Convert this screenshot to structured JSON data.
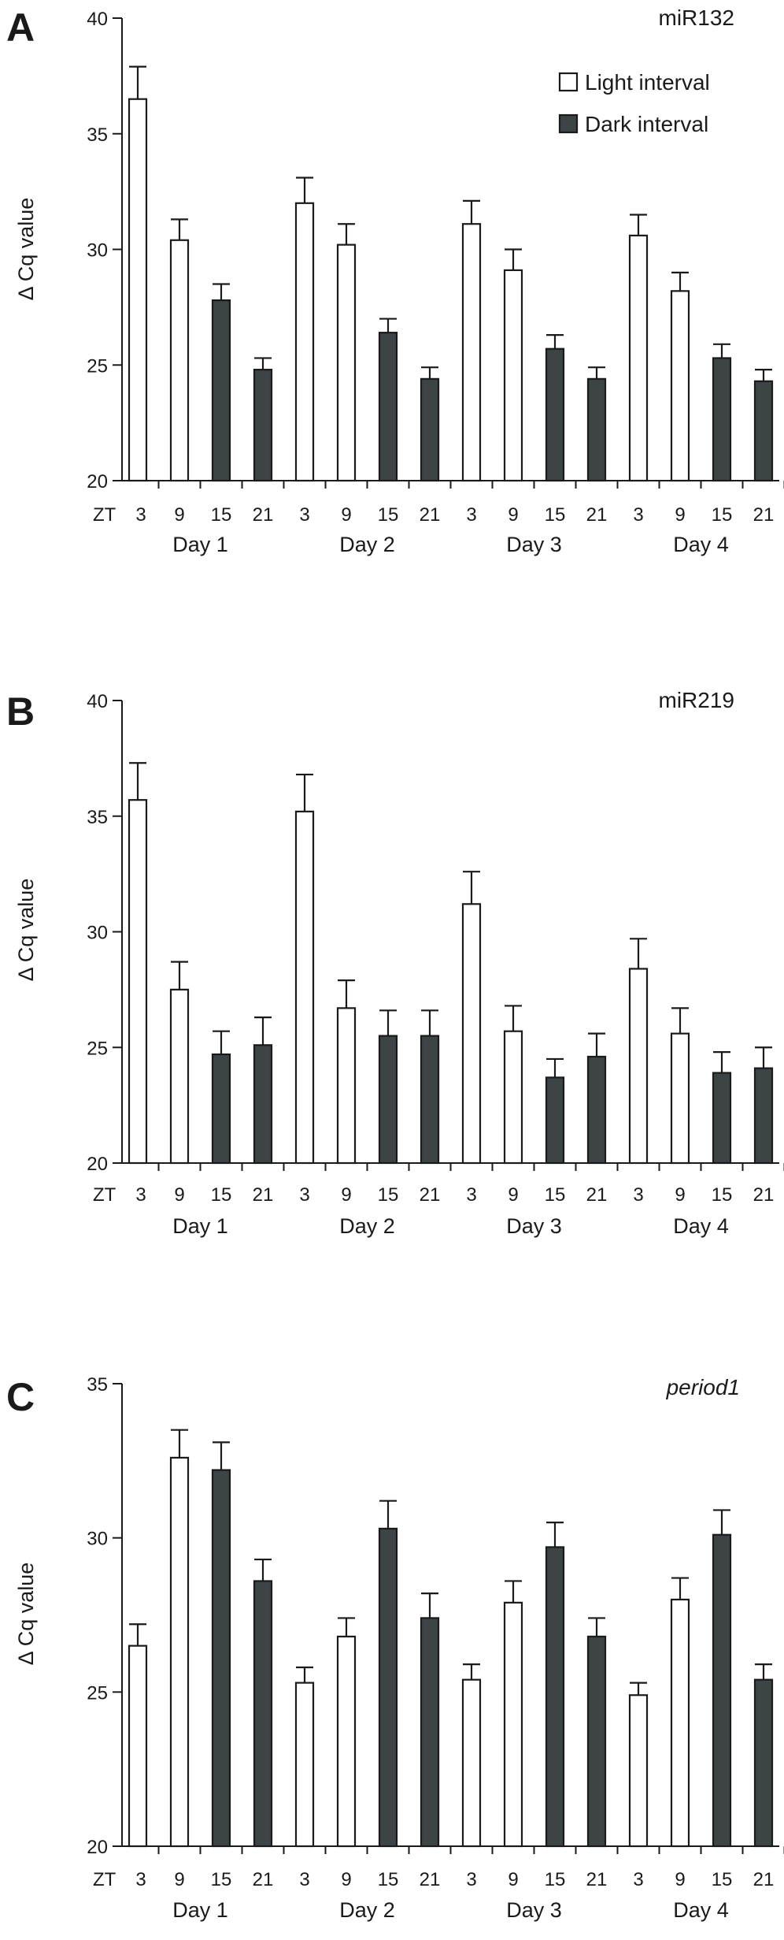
{
  "legend": [
    {
      "label": "Light interval",
      "style": "light"
    },
    {
      "label": "Dark interval",
      "style": "dark"
    }
  ],
  "colors": {
    "light_fill": "#ffffff",
    "dark_fill": "#3c4446",
    "stroke": "#1a1a1a"
  },
  "chart_data": [
    {
      "panel": "A",
      "type": "bar",
      "title": "miR132",
      "title_italic": false,
      "ylabel": "Δ Cq value",
      "ylim": [
        20,
        40
      ],
      "yticks": [
        20,
        25,
        30,
        35,
        40
      ],
      "zt_prefix": "ZT",
      "categories": [
        "3",
        "9",
        "15",
        "21",
        "3",
        "9",
        "15",
        "21",
        "3",
        "9",
        "15",
        "21",
        "3",
        "9",
        "15",
        "21"
      ],
      "groups": [
        "Day 1",
        "Day 2",
        "Day 3",
        "Day 4"
      ],
      "interval": [
        "light",
        "light",
        "dark",
        "dark",
        "light",
        "light",
        "dark",
        "dark",
        "light",
        "light",
        "dark",
        "dark",
        "light",
        "light",
        "dark",
        "dark"
      ],
      "values": [
        36.5,
        30.4,
        27.8,
        24.8,
        32.0,
        30.2,
        26.4,
        24.4,
        31.1,
        29.1,
        25.7,
        24.4,
        30.6,
        28.2,
        25.3,
        24.3
      ],
      "errors": [
        1.4,
        0.9,
        0.7,
        0.5,
        1.1,
        0.9,
        0.6,
        0.5,
        1.0,
        0.9,
        0.6,
        0.5,
        0.9,
        0.8,
        0.6,
        0.5
      ],
      "legend_position": "top-right"
    },
    {
      "panel": "B",
      "type": "bar",
      "title": "miR219",
      "title_italic": false,
      "ylabel": "Δ Cq value",
      "ylim": [
        20,
        40
      ],
      "yticks": [
        20,
        25,
        30,
        35,
        40
      ],
      "zt_prefix": "ZT",
      "categories": [
        "3",
        "9",
        "15",
        "21",
        "3",
        "9",
        "15",
        "21",
        "3",
        "9",
        "15",
        "21",
        "3",
        "9",
        "15",
        "21"
      ],
      "groups": [
        "Day 1",
        "Day 2",
        "Day 3",
        "Day 4"
      ],
      "interval": [
        "light",
        "light",
        "dark",
        "dark",
        "light",
        "light",
        "dark",
        "dark",
        "light",
        "light",
        "dark",
        "dark",
        "light",
        "light",
        "dark",
        "dark"
      ],
      "values": [
        35.7,
        27.5,
        24.7,
        25.1,
        35.2,
        26.7,
        25.5,
        25.5,
        31.2,
        25.7,
        23.7,
        24.6,
        28.4,
        25.6,
        23.9,
        24.1
      ],
      "errors": [
        1.6,
        1.2,
        1.0,
        1.2,
        1.6,
        1.2,
        1.1,
        1.1,
        1.4,
        1.1,
        0.8,
        1.0,
        1.3,
        1.1,
        0.9,
        0.9
      ]
    },
    {
      "panel": "C",
      "type": "bar",
      "title": "period1",
      "title_italic": true,
      "ylabel": "Δ Cq value",
      "ylim": [
        20,
        35
      ],
      "yticks": [
        20,
        25,
        30,
        35
      ],
      "zt_prefix": "ZT",
      "categories": [
        "3",
        "9",
        "15",
        "21",
        "3",
        "9",
        "15",
        "21",
        "3",
        "9",
        "15",
        "21",
        "3",
        "9",
        "15",
        "21"
      ],
      "groups": [
        "Day 1",
        "Day 2",
        "Day 3",
        "Day 4"
      ],
      "interval": [
        "light",
        "light",
        "dark",
        "dark",
        "light",
        "light",
        "dark",
        "dark",
        "light",
        "light",
        "dark",
        "dark",
        "light",
        "light",
        "dark",
        "dark"
      ],
      "values": [
        26.5,
        32.6,
        32.2,
        28.6,
        25.3,
        26.8,
        30.3,
        27.4,
        25.4,
        27.9,
        29.7,
        26.8,
        24.9,
        28.0,
        30.1,
        25.4
      ],
      "errors": [
        0.7,
        0.9,
        0.9,
        0.7,
        0.5,
        0.6,
        0.9,
        0.8,
        0.5,
        0.7,
        0.8,
        0.6,
        0.4,
        0.7,
        0.8,
        0.5
      ]
    }
  ]
}
